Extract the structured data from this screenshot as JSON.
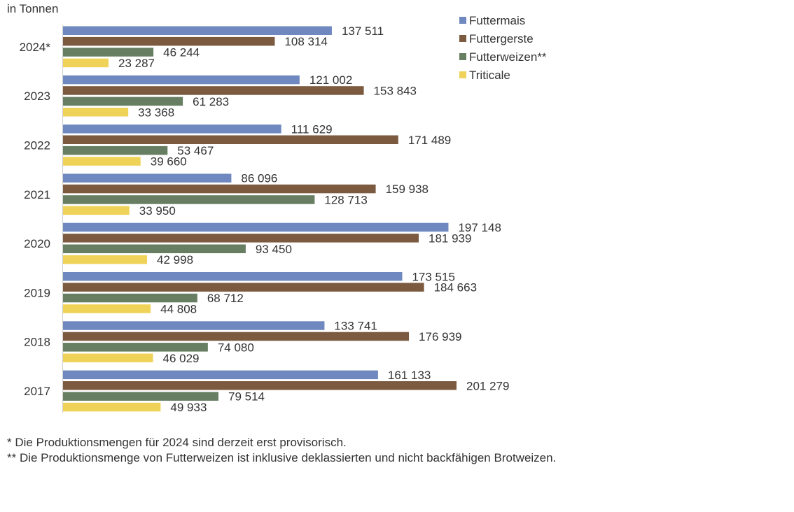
{
  "chart_data": {
    "type": "bar",
    "orientation": "horizontal",
    "unit_label": "in Tonnen",
    "categories": [
      "2024*",
      "2023",
      "2022",
      "2021",
      "2020",
      "2019",
      "2018",
      "2017"
    ],
    "series": [
      {
        "name": "Futtermais",
        "color": "#6f88bf",
        "values": [
          137511,
          121002,
          111629,
          86096,
          197148,
          173515,
          133741,
          161133
        ],
        "labels": [
          "137 511",
          "121 002",
          "111 629",
          "86 096",
          "197 148",
          "173 515",
          "133 741",
          "161 133"
        ]
      },
      {
        "name": "Futtergerste",
        "color": "#7b5a3f",
        "values": [
          108314,
          153843,
          171489,
          159938,
          181939,
          184663,
          176939,
          201279
        ],
        "labels": [
          "108 314",
          "153 843",
          "171 489",
          "159 938",
          "181 939",
          "184 663",
          "176 939",
          "201 279"
        ]
      },
      {
        "name": "Futterweizen**",
        "color": "#677e62",
        "values": [
          46244,
          61283,
          53467,
          128713,
          93450,
          68712,
          74080,
          79514
        ],
        "labels": [
          "46 244",
          "61 283",
          "53 467",
          "128 713",
          "93 450",
          "68 712",
          "74 080",
          "79 514"
        ]
      },
      {
        "name": "Triticale",
        "color": "#efd358",
        "values": [
          23287,
          33368,
          39660,
          33950,
          42998,
          44808,
          46029,
          49933
        ],
        "labels": [
          "23 287",
          "33 368",
          "39 660",
          "33 950",
          "42 998",
          "44 808",
          "46 029",
          "49 933"
        ]
      }
    ],
    "xlim": [
      0,
      201279
    ],
    "legend_position": "top-right",
    "grid": false
  },
  "footnotes": [
    "* Die Produktionsmengen für 2024 sind derzeit erst provisorisch.",
    "** Die Produktionsmenge von Futterweizen ist inklusive deklassierten und nicht backfähigen Brotweizen."
  ]
}
